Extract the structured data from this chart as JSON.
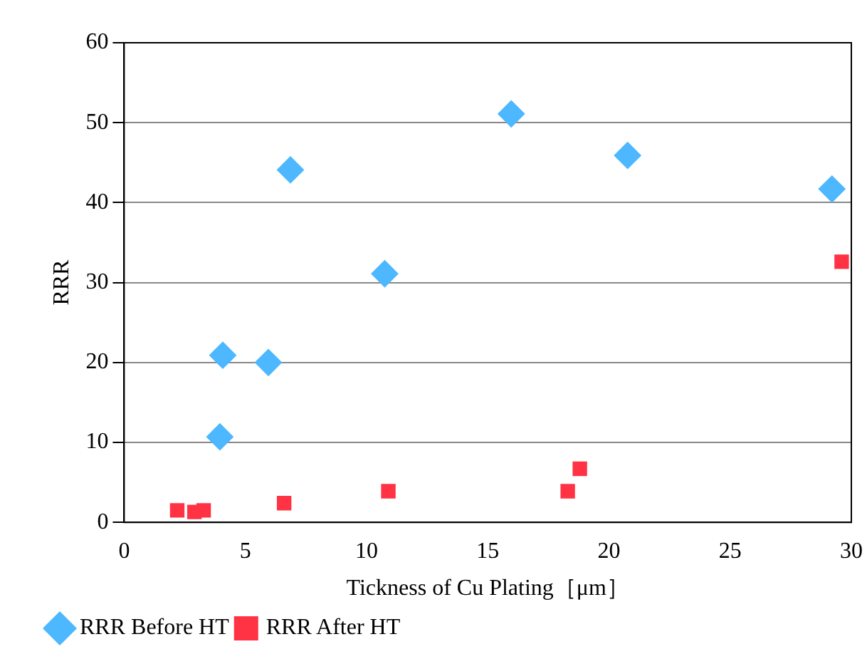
{
  "chart_data": {
    "type": "scatter",
    "xlabel": "Tickness of Cu Plating［μm］",
    "ylabel": "RRR",
    "xlim": [
      0,
      30
    ],
    "xticks": [
      0,
      5,
      10,
      15,
      20,
      25,
      30
    ],
    "ylim": [
      0,
      60
    ],
    "yticks": [
      0,
      10,
      20,
      30,
      40,
      50,
      60
    ],
    "grid": "y",
    "legend": "bottom left",
    "series": [
      {
        "name": "RRR Before HT",
        "color": "#4db8ff",
        "marker": "diamond",
        "x": [
          3.95,
          4.07,
          5.95,
          6.86,
          10.75,
          15.97,
          20.77,
          29.2
        ],
        "values": [
          10.7,
          20.9,
          20,
          44.1,
          31.1,
          51.1,
          45.9,
          41.7
        ]
      },
      {
        "name": "RRR After HT",
        "color": "#ff3344",
        "marker": "square",
        "x": [
          2.19,
          2.9,
          3.28,
          6.6,
          10.9,
          18.3,
          18.8,
          29.6
        ],
        "values": [
          1.5,
          1.3,
          1.5,
          2.4,
          3.9,
          3.9,
          6.7,
          32.6
        ]
      }
    ]
  }
}
